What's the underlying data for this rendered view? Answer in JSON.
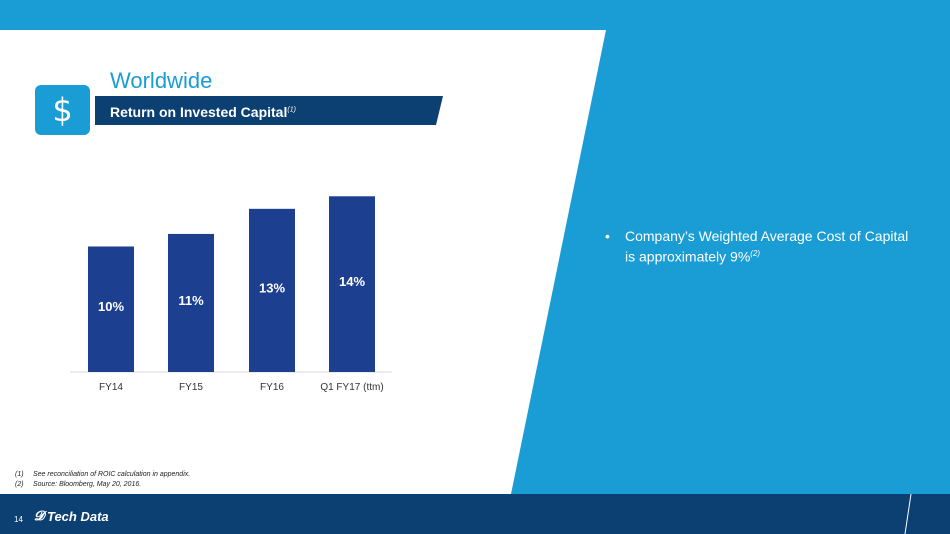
{
  "header": {
    "title": "Worldwide",
    "subtitle": "Return on Invested Capital",
    "subtitle_sup": "(1)",
    "icon": "dollar-icon",
    "icon_glyph": "$"
  },
  "bullet": {
    "text": "Company’s Weighted Average Cost of Capital is approximately 9%",
    "sup": "(2)"
  },
  "footnotes": [
    {
      "num": "(1)",
      "text": "See reconciliation of ROIC calculation in appendix."
    },
    {
      "num": "(2)",
      "text": "Source: Bloomberg, May 20, 2016."
    }
  ],
  "footer": {
    "page_number": "14",
    "logo_text": "Tech Data",
    "logo_mark": "𝓓"
  },
  "colors": {
    "accent_blue": "#1a9dd4",
    "bar_navy": "#1c3f8f",
    "footer_navy": "#0c3f72",
    "subtitle_bar": "#0c3f72"
  },
  "chart_data": {
    "type": "bar",
    "categories": [
      "FY14",
      "FY15",
      "FY16",
      "Q1 FY17 (ttm)"
    ],
    "values": [
      10,
      11,
      13,
      14
    ],
    "value_labels": [
      "10%",
      "11%",
      "13%",
      "14%"
    ],
    "title": "",
    "xlabel": "",
    "ylabel": "",
    "ylim": [
      0,
      14.5
    ],
    "grid": false
  }
}
